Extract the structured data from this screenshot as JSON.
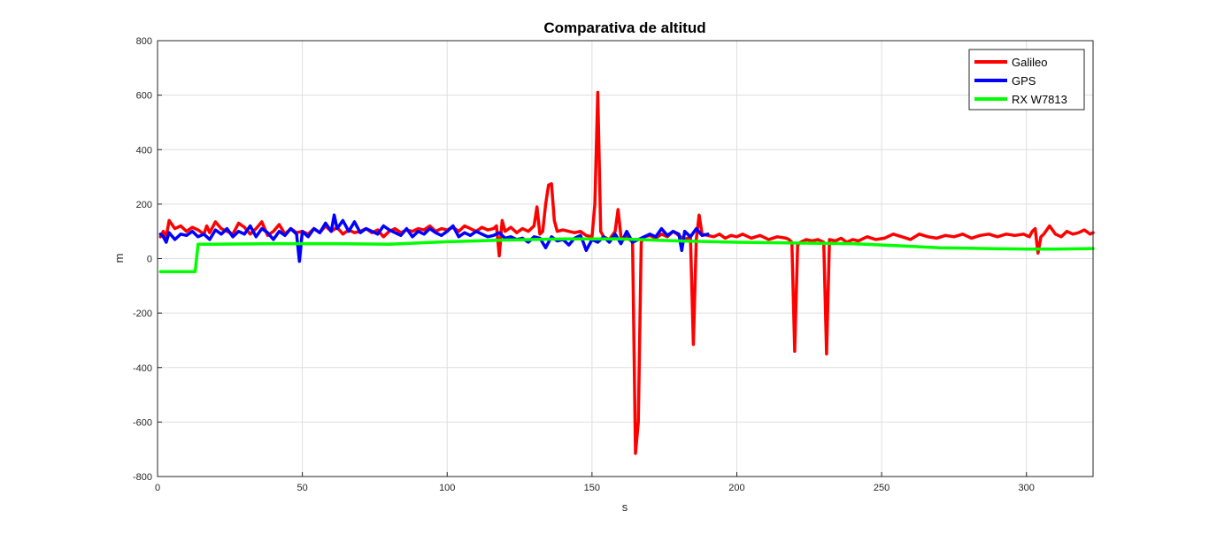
{
  "chart_data": {
    "type": "line",
    "title": "Comparativa de altitud",
    "xlabel": "s",
    "ylabel": "m",
    "xlim": [
      0,
      323
    ],
    "ylim": [
      -800,
      800
    ],
    "xticks": [
      0,
      50,
      100,
      150,
      200,
      250,
      300
    ],
    "yticks": [
      -800,
      -600,
      -400,
      -200,
      0,
      200,
      400,
      600,
      800
    ],
    "grid": true,
    "legend_position": "top-right",
    "series": [
      {
        "name": "Galileo",
        "color": "#ff0000",
        "x": [
          1,
          2,
          3,
          4,
          6,
          8,
          10,
          12,
          14,
          16,
          17,
          18,
          20,
          22,
          24,
          26,
          28,
          30,
          32,
          34,
          36,
          38,
          40,
          42,
          44,
          46,
          48,
          50,
          52,
          54,
          56,
          58,
          60,
          62,
          64,
          66,
          68,
          70,
          72,
          74,
          76,
          78,
          80,
          82,
          84,
          86,
          88,
          90,
          92,
          94,
          96,
          98,
          100,
          102,
          104,
          106,
          108,
          110,
          112,
          114,
          116,
          117,
          118,
          119,
          120,
          122,
          124,
          126,
          128,
          130,
          131,
          132,
          133,
          134,
          135,
          136,
          137,
          138,
          140,
          142,
          144,
          146,
          148,
          150,
          151,
          152,
          153,
          154,
          156,
          158,
          159,
          160,
          161,
          162,
          164,
          165,
          166,
          167,
          168,
          170,
          172,
          174,
          176,
          178,
          180,
          182,
          184,
          185,
          186,
          187,
          188,
          190,
          192,
          194,
          196,
          198,
          200,
          202,
          205,
          208,
          211,
          214,
          217,
          218,
          219,
          220,
          221,
          222,
          224,
          226,
          228,
          230,
          231,
          232,
          234,
          236,
          238,
          240,
          242,
          245,
          248,
          251,
          254,
          257,
          260,
          263,
          266,
          269,
          272,
          275,
          278,
          281,
          284,
          287,
          290,
          293,
          296,
          299,
          301,
          302,
          303,
          304,
          305,
          306,
          308,
          310,
          312,
          314,
          316,
          318,
          320,
          322,
          323
        ],
        "y": [
          80,
          100,
          80,
          140,
          110,
          120,
          100,
          115,
          105,
          90,
          120,
          95,
          135,
          110,
          100,
          90,
          130,
          115,
          90,
          110,
          135,
          85,
          100,
          125,
          90,
          110,
          95,
          100,
          90,
          110,
          95,
          120,
          100,
          115,
          90,
          105,
          95,
          100,
          110,
          95,
          105,
          80,
          100,
          110,
          95,
          105,
          100,
          110,
          105,
          120,
          100,
          110,
          105,
          115,
          100,
          120,
          110,
          100,
          115,
          105,
          110,
          120,
          10,
          140,
          100,
          115,
          95,
          110,
          100,
          120,
          190,
          90,
          100,
          200,
          270,
          275,
          140,
          100,
          105,
          100,
          95,
          100,
          85,
          80,
          200,
          610,
          100,
          80,
          70,
          100,
          180,
          80,
          70,
          80,
          60,
          -715,
          -600,
          60,
          80,
          85,
          75,
          90,
          80,
          100,
          85,
          70,
          80,
          -315,
          70,
          160,
          90,
          85,
          80,
          90,
          75,
          85,
          80,
          90,
          75,
          85,
          70,
          80,
          75,
          70,
          60,
          -340,
          50,
          60,
          70,
          65,
          70,
          60,
          -350,
          70,
          65,
          75,
          60,
          70,
          65,
          80,
          70,
          75,
          90,
          80,
          70,
          90,
          80,
          75,
          85,
          80,
          90,
          75,
          85,
          90,
          80,
          90,
          85,
          90,
          80,
          100,
          110,
          20,
          80,
          90,
          120,
          90,
          80,
          100,
          90,
          95,
          105,
          90,
          95
        ]
      },
      {
        "name": "GPS",
        "color": "#0000ff",
        "x": [
          1,
          2,
          3,
          4,
          6,
          8,
          10,
          12,
          14,
          16,
          18,
          20,
          22,
          24,
          26,
          28,
          30,
          32,
          34,
          36,
          38,
          40,
          42,
          44,
          46,
          48,
          49,
          50,
          52,
          54,
          56,
          58,
          60,
          61,
          62,
          64,
          66,
          68,
          70,
          72,
          74,
          76,
          78,
          80,
          82,
          84,
          86,
          88,
          90,
          92,
          94,
          96,
          98,
          100,
          102,
          104,
          106,
          108,
          110,
          112,
          114,
          116,
          118,
          120,
          122,
          124,
          126,
          128,
          130,
          132,
          134,
          136,
          138,
          140,
          142,
          144,
          146,
          147,
          148,
          150,
          152,
          154,
          156,
          158,
          160,
          162,
          164,
          166,
          168,
          170,
          172,
          174,
          176,
          178,
          180,
          181,
          182,
          184,
          186,
          188,
          190
        ],
        "y": [
          90,
          80,
          60,
          95,
          70,
          90,
          85,
          100,
          80,
          90,
          70,
          105,
          90,
          110,
          80,
          100,
          90,
          120,
          80,
          110,
          95,
          70,
          100,
          85,
          110,
          90,
          -10,
          100,
          80,
          110,
          95,
          130,
          100,
          160,
          110,
          140,
          100,
          135,
          95,
          110,
          100,
          90,
          120,
          105,
          95,
          85,
          110,
          80,
          100,
          90,
          110,
          95,
          85,
          100,
          120,
          80,
          95,
          85,
          100,
          90,
          80,
          85,
          95,
          75,
          80,
          70,
          75,
          60,
          80,
          75,
          40,
          80,
          65,
          70,
          50,
          75,
          85,
          60,
          30,
          70,
          60,
          80,
          60,
          90,
          55,
          100,
          60,
          70,
          80,
          90,
          80,
          110,
          85,
          100,
          90,
          30,
          100,
          80,
          110,
          85,
          90
        ]
      },
      {
        "name": "RX W7813",
        "color": "#00ff00",
        "x": [
          1,
          13,
          14,
          20,
          40,
          60,
          80,
          100,
          120,
          140,
          160,
          180,
          200,
          220,
          240,
          250,
          260,
          270,
          280,
          290,
          300,
          310,
          323
        ],
        "y": [
          -48,
          -48,
          53,
          53,
          55,
          55,
          53,
          62,
          68,
          72,
          72,
          65,
          60,
          57,
          55,
          50,
          45,
          40,
          38,
          36,
          35,
          35,
          37
        ]
      }
    ]
  }
}
